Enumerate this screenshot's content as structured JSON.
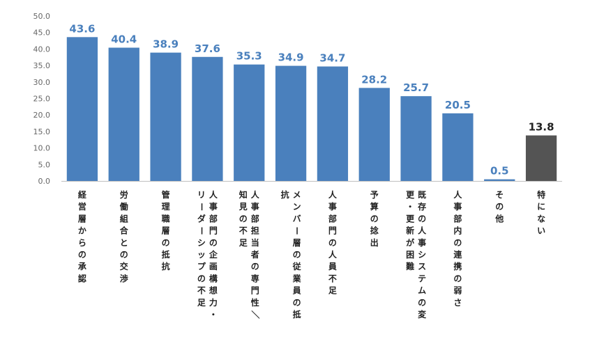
{
  "chart_data": {
    "type": "bar",
    "title": "",
    "xlabel": "",
    "ylabel": "",
    "ylim": [
      0,
      50
    ],
    "yticks": [
      "0.0",
      "5.0",
      "10.0",
      "15.0",
      "20.0",
      "25.0",
      "30.0",
      "35.0",
      "40.0",
      "45.0",
      "50.0"
    ],
    "grid": false,
    "categories": [
      [
        "経営層からの承認"
      ],
      [
        "労働組合との交渉"
      ],
      [
        "管理職層の抵抗"
      ],
      [
        "人事部門の企画構想力・",
        "リーダーシップの不足"
      ],
      [
        "人事部担当者の専門性／",
        "知見の不足"
      ],
      [
        "メンバー層の従業員の抵",
        "抗"
      ],
      [
        "人事部門の人員不足"
      ],
      [
        "予算の捻出"
      ],
      [
        "既存の人事システムの変",
        "更・更新が困難"
      ],
      [
        "人事部内の連携の弱さ"
      ],
      [
        "その他"
      ],
      [
        "特にない"
      ]
    ],
    "values": [
      43.6,
      40.4,
      38.9,
      37.6,
      35.3,
      34.9,
      34.7,
      28.2,
      25.7,
      20.5,
      0.5,
      13.8
    ],
    "value_labels": [
      "43.6",
      "40.4",
      "38.9",
      "37.6",
      "35.3",
      "34.9",
      "34.7",
      "28.2",
      "25.7",
      "20.5",
      "0.5",
      "13.8"
    ],
    "colors": {
      "bar": "#4a80bd",
      "bar_highlight": "#545454",
      "label": "#4a80bd",
      "label_highlight": "#222222",
      "axis": "#bfbfbf"
    },
    "highlight_index": 11
  }
}
